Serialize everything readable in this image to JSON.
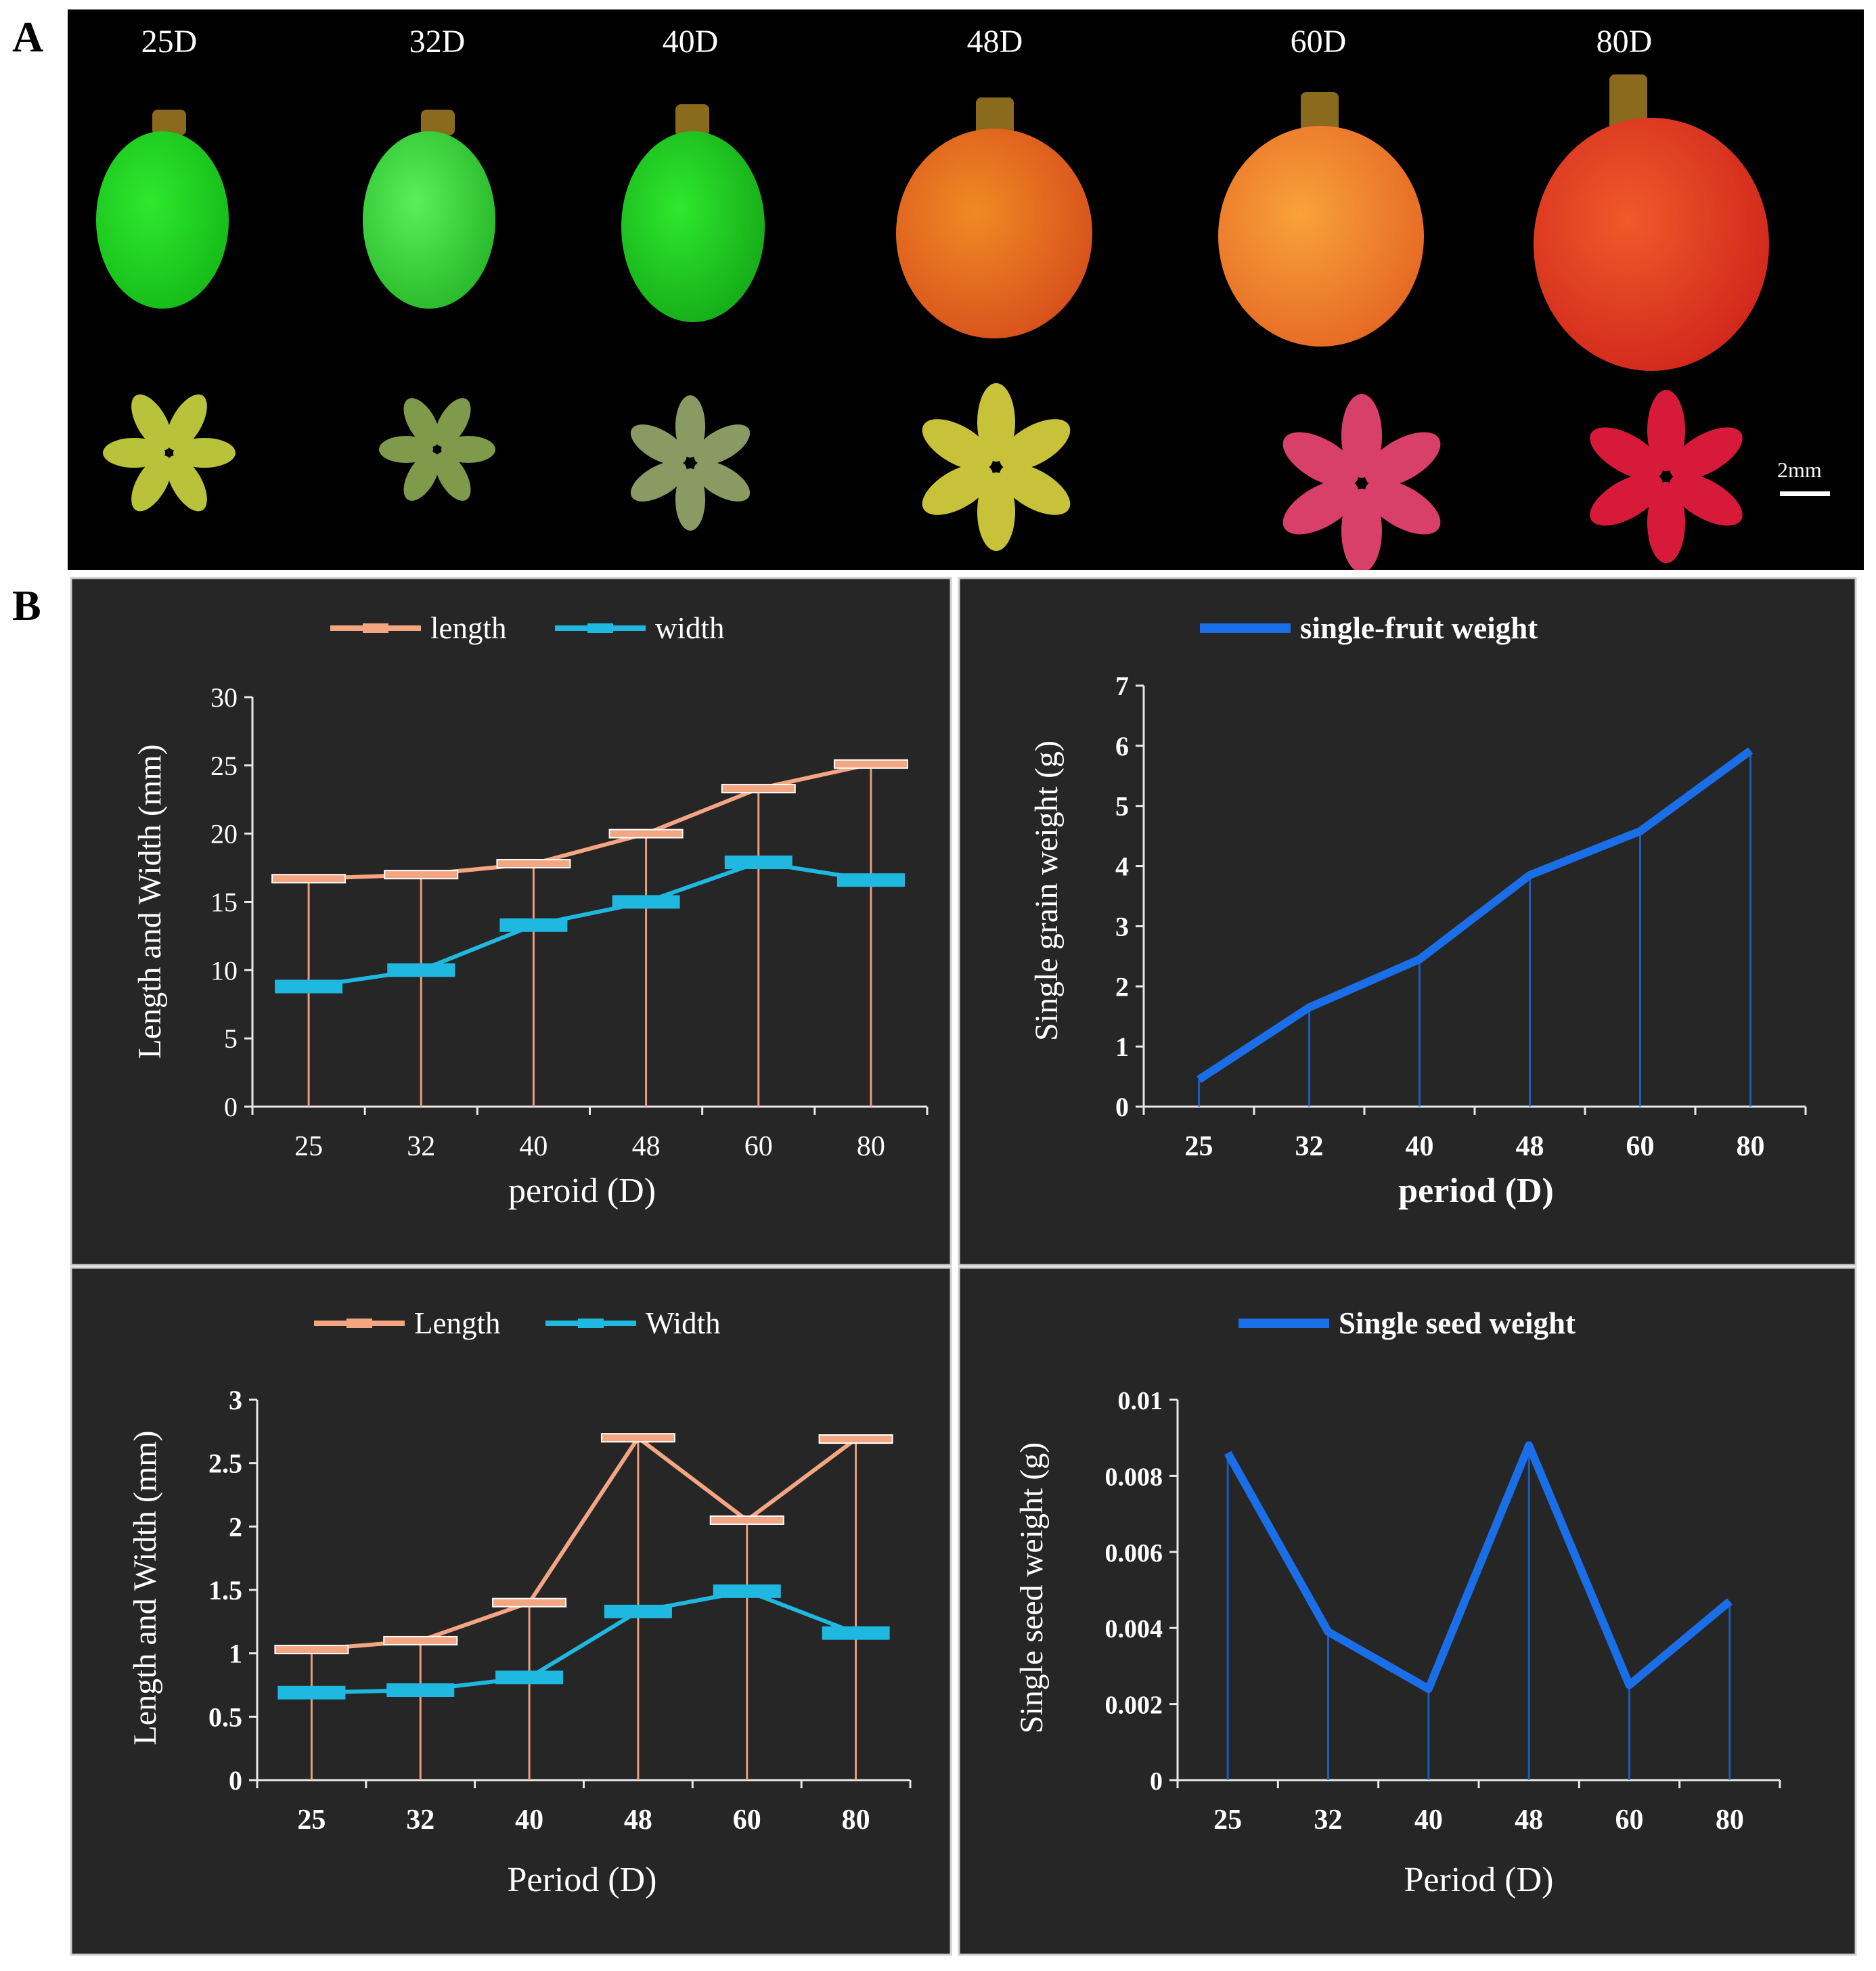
{
  "panel_labels": {
    "a": "A",
    "b": "B"
  },
  "panel_a": {
    "stages": [
      "25D",
      "32D",
      "40D",
      "48D",
      "60D",
      "80D"
    ],
    "scale_bar": "2mm"
  },
  "chart_data": [
    {
      "type": "line",
      "categories": [
        "25",
        "32",
        "40",
        "48",
        "60",
        "80"
      ],
      "series": [
        {
          "name": "length",
          "values": [
            16.7,
            17.0,
            17.8,
            20.0,
            23.3,
            25.1
          ],
          "color": "#f4a582"
        },
        {
          "name": "width",
          "values": [
            8.8,
            10.0,
            13.3,
            15.0,
            17.9,
            16.6
          ],
          "color": "#1fb8e0"
        }
      ],
      "xlabel": "peroid (D)",
      "ylabel": "Length and Width (mm)",
      "ylim": [
        0,
        30
      ],
      "yticks": [
        "0",
        "5",
        "10",
        "15",
        "20",
        "25",
        "30"
      ],
      "legend_position": "top"
    },
    {
      "type": "line",
      "categories": [
        "25",
        "32",
        "40",
        "48",
        "60",
        "80"
      ],
      "series": [
        {
          "name": "single-fruit weight",
          "values": [
            0.45,
            1.65,
            2.45,
            3.85,
            4.58,
            5.92
          ],
          "color": "#1a6fe8"
        }
      ],
      "xlabel": "period (D)",
      "ylabel": "Single grain weight (g)",
      "ylim": [
        0,
        7
      ],
      "yticks": [
        "0",
        "1",
        "2",
        "3",
        "4",
        "5",
        "6",
        "7"
      ],
      "legend_position": "top"
    },
    {
      "type": "line",
      "categories": [
        "25",
        "32",
        "40",
        "48",
        "60",
        "80"
      ],
      "series": [
        {
          "name": "Length",
          "values": [
            1.03,
            1.1,
            1.4,
            2.7,
            2.05,
            2.69
          ],
          "color": "#f4a582"
        },
        {
          "name": "Width",
          "values": [
            0.69,
            0.71,
            0.81,
            1.33,
            1.49,
            1.16
          ],
          "color": "#1fb8e0"
        }
      ],
      "xlabel": "Period (D)",
      "ylabel": "Length and Width (mm)",
      "ylim": [
        0,
        3
      ],
      "yticks": [
        "0",
        "0.5",
        "1",
        "1.5",
        "2",
        "2.5",
        "3"
      ],
      "legend_position": "top"
    },
    {
      "type": "line",
      "categories": [
        "25",
        "32",
        "40",
        "48",
        "60",
        "80"
      ],
      "series": [
        {
          "name": "Single seed weight",
          "values": [
            0.0086,
            0.0039,
            0.0024,
            0.0088,
            0.0025,
            0.0047
          ],
          "color": "#1a6fe8"
        }
      ],
      "xlabel": "Period (D)",
      "ylabel": "Single seed weight (g)",
      "ylim": [
        0,
        0.01
      ],
      "yticks": [
        "0",
        "0.002",
        "0.004",
        "0.006",
        "0.008",
        "0.01"
      ],
      "legend_position": "top"
    }
  ]
}
